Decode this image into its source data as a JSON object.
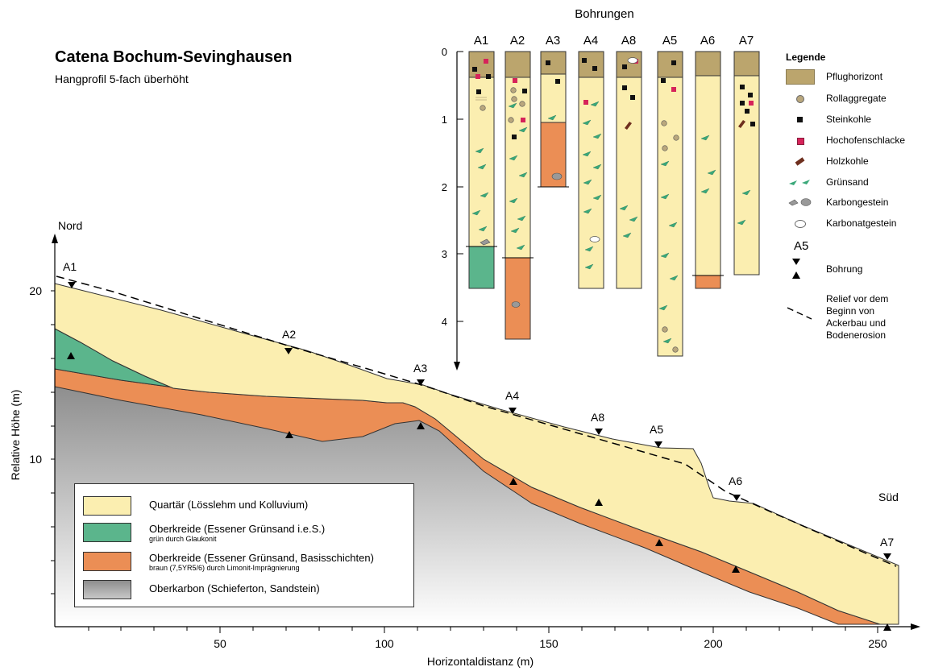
{
  "title": "Catena Bochum-Sevinghausen",
  "subtitle": "Hangprofil 5-fach überhöht",
  "profile": {
    "north_label": "Nord",
    "south_label": "Süd",
    "y_axis_label": "Relative Höhe (m)",
    "x_axis_label": "Horizontaldistanz (m)",
    "y_ticks": [
      "10",
      "20"
    ],
    "x_ticks": [
      "50",
      "100",
      "150",
      "200",
      "250"
    ],
    "boreholes": [
      "A1",
      "A2",
      "A3",
      "A4",
      "A8",
      "A5",
      "A6",
      "A7"
    ]
  },
  "columns": {
    "title": "Bohrungen",
    "names": [
      "A1",
      "A2",
      "A3",
      "A4",
      "A8",
      "A5",
      "A6",
      "A7"
    ],
    "depth_ticks": [
      "0",
      "1",
      "2",
      "3",
      "4"
    ]
  },
  "legend": {
    "heading": "Legende",
    "items": [
      "Pflughorizont",
      "Rollaggregate",
      "Steinkohle",
      "Hochofenschlacke",
      "Holzkohle",
      "Grünsand",
      "Karbongestein",
      "Karbonatgestein"
    ],
    "borehole_symbol": "A5",
    "borehole_label": "Bohrung",
    "relief_label": [
      "Relief vor dem",
      "Beginn von",
      "Ackerbau und",
      "Bodenerosion"
    ]
  },
  "units_legend": [
    {
      "main": "Quartär (Lösslehm und Kolluvium)",
      "sub": ""
    },
    {
      "main": "Oberkreide (Essener Grünsand i.e.S.)",
      "sub": "grün durch Glaukonit"
    },
    {
      "main": "Oberkreide (Essener Grünsand, Basisschichten)",
      "sub": "braun (7,5YR5/6) durch Limonit-Imprägnierung"
    },
    {
      "main": "Oberkarbon (Schieferton, Sandstein)",
      "sub": ""
    }
  ],
  "colors": {
    "quartaer": "#fbeeb0",
    "gruensand": "#5bb58c",
    "basisschichten": "#eb8e55",
    "oberkarbon": "#a0a0a0",
    "pflughorizont": "#bba56d",
    "rollaggregate": "#b9a77d",
    "steinkohle": "#111111",
    "hochofenschlacke": "#d6235a",
    "holzkohle": "#6e2f1e",
    "gruensand_symbol": "#3aa879",
    "karbongestein": "#999999",
    "karbonatgestein": "#ffffff"
  }
}
